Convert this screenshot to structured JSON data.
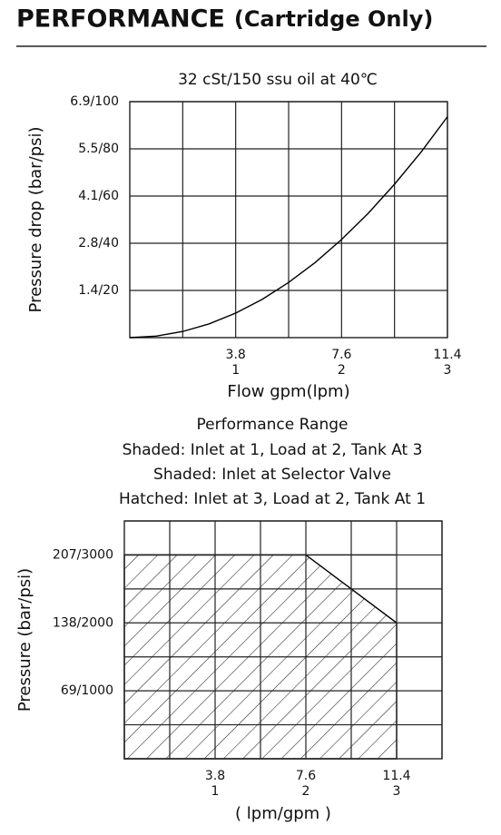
{
  "header": {
    "title": "PERFORMANCE",
    "subtitle": "(Cartridge Only)"
  },
  "chart_data": [
    {
      "type": "line",
      "title": "32 cSt/150 ssu oil at 40℃",
      "ylabel": "Pressure drop (bar/psi)",
      "xlabel": "Flow gpm(lpm)",
      "xlim": [
        0,
        11.4
      ],
      "xticks": [
        3.8,
        7.6,
        11.4
      ],
      "xminor": [
        1.9,
        5.7,
        9.5
      ],
      "x2lim": [
        0,
        3
      ],
      "x2ticks": [
        1,
        2,
        3
      ],
      "ylim": [
        0,
        100
      ],
      "yticks": [
        {
          "value": 20,
          "label": "1.4/20"
        },
        {
          "value": 40,
          "label": "2.8/40"
        },
        {
          "value": 60,
          "label": "4.1/60"
        },
        {
          "value": 80,
          "label": "5.5/80"
        },
        {
          "value": 100,
          "label": "6.9/100"
        }
      ],
      "color": "#000000",
      "x": [
        0,
        0.95,
        1.9,
        2.85,
        3.8,
        4.75,
        5.7,
        6.65,
        7.6,
        8.55,
        9.5,
        10.45,
        11.4
      ],
      "values": [
        0,
        0.65,
        2.6,
        5.85,
        10.4,
        16.2,
        23.4,
        31.8,
        41.6,
        52.6,
        65,
        78.6,
        93.6
      ]
    },
    {
      "type": "area",
      "title": "Performance Range",
      "subtitles": [
        "Shaded: Inlet at 1, Load at 2, Tank At 3",
        "Shaded: Inlet at Selector Valve",
        "Hatched: Inlet at 3, Load at 2, Tank At 1"
      ],
      "ylabel": "Pressure (bar/psi)",
      "xlabel": "( lpm/gpm )",
      "xlim": [
        0,
        13.3
      ],
      "xticks": [
        3.8,
        7.6,
        11.4
      ],
      "xminor": [
        1.9,
        5.7,
        9.5,
        13.3
      ],
      "x2lim": [
        0,
        3.5
      ],
      "x2ticks": [
        1,
        2,
        3
      ],
      "ylim": [
        0,
        3500
      ],
      "yticks": [
        {
          "value": 1000,
          "label": "69/1000"
        },
        {
          "value": 2000,
          "label": "138/2000"
        },
        {
          "value": 3000,
          "label": "207/3000"
        }
      ],
      "yminor": [
        500,
        1500,
        2500,
        3500
      ],
      "series": [
        {
          "color": "#000000",
          "x": [
            0,
            0,
            7.6,
            11.4,
            11.4
          ],
          "values": [
            0,
            3000,
            3000,
            2000,
            0
          ]
        },
        {
          "color": "#000000",
          "x": [
            0,
            11.4
          ],
          "values": [
            3000,
            3000
          ]
        }
      ]
    }
  ]
}
